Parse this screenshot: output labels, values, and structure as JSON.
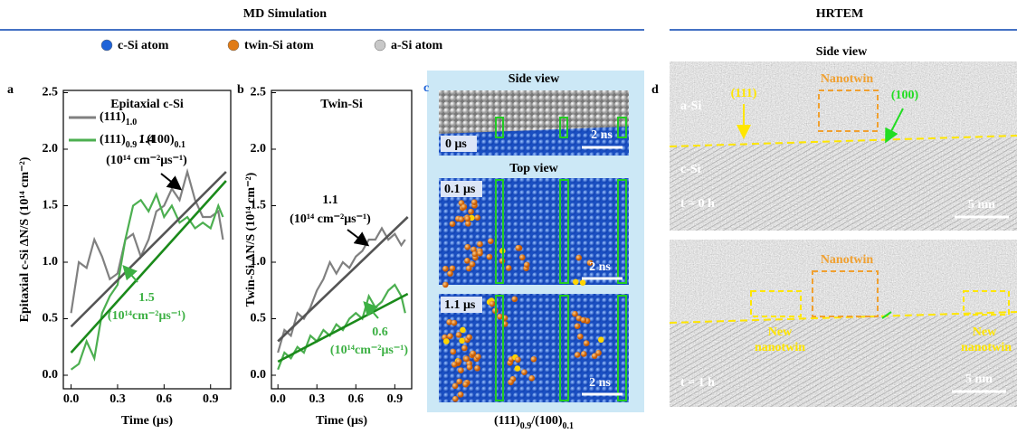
{
  "header": {
    "md": "MD Simulation",
    "hrtem": "HRTEM"
  },
  "legend": {
    "items": [
      {
        "label": "c-Si atom",
        "color": "#1f63d8"
      },
      {
        "label": "twin-Si atom",
        "color": "#e07b16"
      },
      {
        "label": "a-Si atom",
        "color": "#c8c8c8"
      }
    ]
  },
  "chart_data": [
    {
      "type": "line",
      "panel": "a",
      "title": "Epitaxial c-Si",
      "xlabel": "Time (μs)",
      "ylabel": "Epitaxial c-Si ΔN/S (10¹⁴ cm⁻²)",
      "xlim": [
        -0.05,
        1.03
      ],
      "ylim": [
        -0.12,
        2.52
      ],
      "xticks": [
        {
          "value": 0,
          "label": "0.0"
        },
        0.3,
        0.6,
        0.9
      ],
      "yticks": [
        {
          "value": 0,
          "label": "0.0"
        },
        0.5,
        {
          "value": 1,
          "label": "1.0"
        },
        1.5,
        {
          "value": 2,
          "label": "2.0"
        },
        2.5
      ],
      "x": [
        0,
        0.05,
        0.1,
        0.15,
        0.2,
        0.25,
        0.3,
        0.35,
        0.4,
        0.45,
        0.5,
        0.55,
        0.6,
        0.65,
        0.7,
        0.75,
        0.8,
        0.85,
        0.9,
        0.95,
        0.98
      ],
      "series": [
        {
          "name": "(111)1.0",
          "color": "#808080",
          "values": [
            0.55,
            1.0,
            0.95,
            1.2,
            1.05,
            0.85,
            0.9,
            1.2,
            1.25,
            1.05,
            1.2,
            1.45,
            1.5,
            1.65,
            1.55,
            1.8,
            1.55,
            1.4,
            1.4,
            1.45,
            1.2
          ]
        },
        {
          "name": "(111)0.9 / (100)0.1",
          "color": "#4caf50",
          "values": [
            0.05,
            0.1,
            0.3,
            0.15,
            0.55,
            0.7,
            0.8,
            1.2,
            1.5,
            1.55,
            1.45,
            1.6,
            1.4,
            1.5,
            1.35,
            1.4,
            1.3,
            1.35,
            1.3,
            1.5,
            1.4
          ]
        }
      ],
      "fits": [
        {
          "color": "#555555",
          "x": [
            0,
            1
          ],
          "values": [
            0.43,
            1.8
          ]
        },
        {
          "color": "#1a8a1a",
          "x": [
            0,
            1
          ],
          "values": [
            0.2,
            1.72
          ]
        }
      ],
      "annotations": [
        {
          "text": "1.4",
          "color": "#000000"
        },
        {
          "text": "(10¹⁴ cm⁻²μs⁻¹)",
          "color": "#000000"
        },
        {
          "text": "1.5",
          "color": "#3cb043"
        },
        {
          "text": "(10¹⁴cm⁻²μs⁻¹)",
          "color": "#3cb043"
        }
      ]
    },
    {
      "type": "line",
      "panel": "b",
      "title": "Twin-Si",
      "xlabel": "Time (μs)",
      "ylabel": "Twin-Si ΔN/S (10¹⁴ cm⁻²)",
      "xlim": [
        -0.05,
        1.03
      ],
      "ylim": [
        -0.12,
        2.52
      ],
      "xticks": [
        {
          "value": 0,
          "label": "0.0"
        },
        0.3,
        0.6,
        0.9
      ],
      "yticks": [
        {
          "value": 0,
          "label": "0.0"
        },
        0.5,
        {
          "value": 1,
          "label": "1.0"
        },
        1.5,
        {
          "value": 2,
          "label": "2.0"
        },
        2.5
      ],
      "x": [
        0,
        0.05,
        0.1,
        0.15,
        0.2,
        0.25,
        0.3,
        0.35,
        0.4,
        0.45,
        0.5,
        0.55,
        0.6,
        0.65,
        0.7,
        0.75,
        0.8,
        0.85,
        0.9,
        0.95,
        0.98
      ],
      "series": [
        {
          "color": "#808080",
          "values": [
            0.2,
            0.4,
            0.35,
            0.55,
            0.5,
            0.6,
            0.75,
            0.85,
            1.0,
            0.9,
            1.0,
            0.95,
            1.05,
            1.1,
            1.2,
            1.2,
            1.3,
            1.2,
            1.25,
            1.15,
            1.2
          ]
        },
        {
          "color": "#4caf50",
          "values": [
            0.05,
            0.2,
            0.15,
            0.25,
            0.2,
            0.35,
            0.3,
            0.4,
            0.35,
            0.45,
            0.4,
            0.5,
            0.55,
            0.5,
            0.7,
            0.6,
            0.65,
            0.75,
            0.8,
            0.7,
            0.55
          ]
        }
      ],
      "fits": [
        {
          "color": "#555555",
          "x": [
            0,
            1
          ],
          "values": [
            0.3,
            1.4
          ]
        },
        {
          "color": "#1a8a1a",
          "x": [
            0,
            1
          ],
          "values": [
            0.12,
            0.72
          ]
        }
      ],
      "annotations": [
        {
          "text": "1.1",
          "color": "#000000"
        },
        {
          "text": "(10¹⁴ cm⁻²μs⁻¹)",
          "color": "#000000"
        },
        {
          "text": "0.6",
          "color": "#3cb043"
        },
        {
          "text": "(10¹⁴cm⁻²μs⁻¹)",
          "color": "#3cb043"
        }
      ]
    }
  ],
  "panel_c": {
    "label": "c",
    "side_title": "Side view",
    "side_time": "0 μs",
    "side_scale": "2 ns",
    "top_title": "Top view",
    "frames": [
      {
        "time": "0.1 μs",
        "scale": "2 ns"
      },
      {
        "time": "1.1 μs",
        "scale": "2 ns"
      }
    ],
    "caption": "(111)0.9/(100)0.1"
  },
  "panel_d": {
    "label": "d",
    "title": "Side view",
    "top": {
      "a_si": "a-Si",
      "plane1": "(111)",
      "nanotwin": "Nanotwin",
      "plane2": "(100)",
      "c_si": "c-Si",
      "time": "t = 0 h",
      "scale": "5 nm"
    },
    "bottom": {
      "nanotwin": "Nanotwin",
      "new1": [
        "New",
        "nanotwin"
      ],
      "new2": [
        "New",
        "nanotwin"
      ],
      "time": "t = 1 h",
      "scale": "5 nm"
    }
  }
}
